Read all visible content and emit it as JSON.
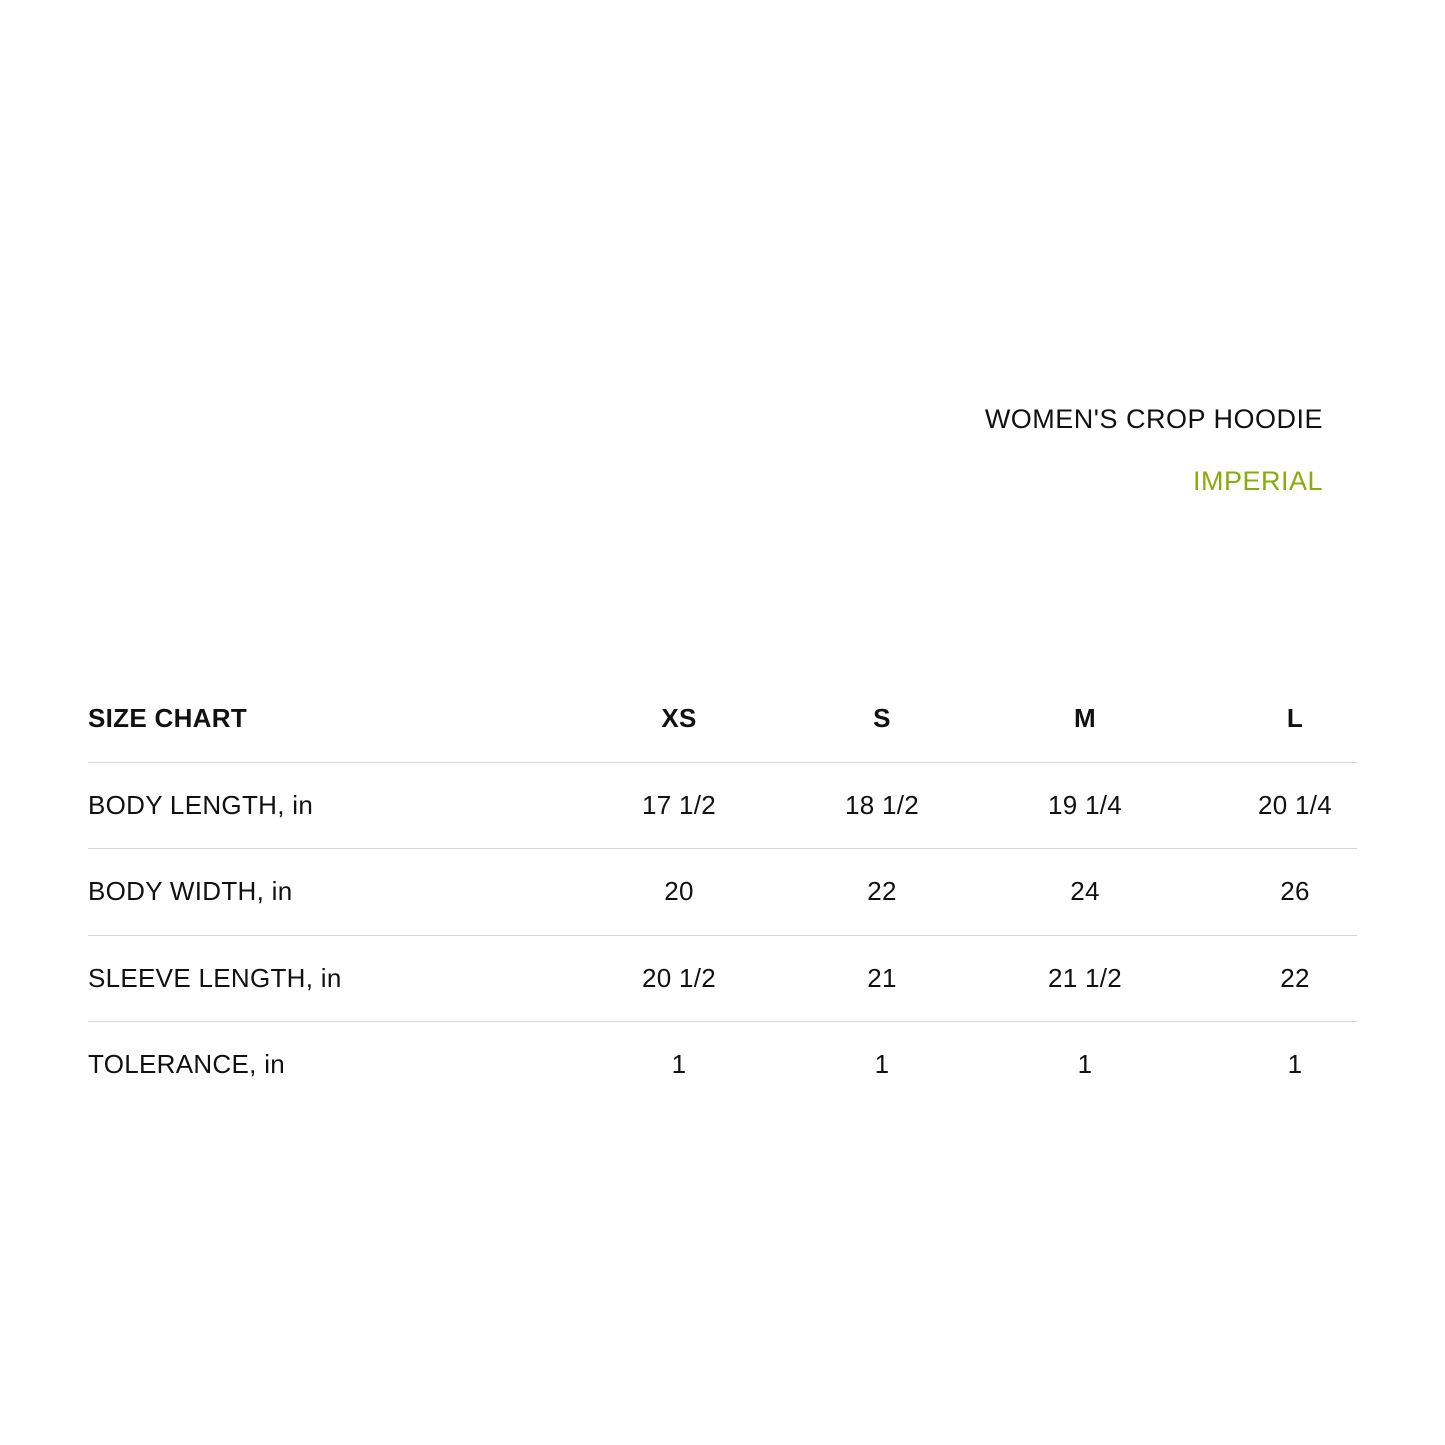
{
  "title": "WOMEN'S CROP HOODIE",
  "unit_system": "IMPERIAL",
  "colors": {
    "accent": "#8aab0a",
    "text": "#111111",
    "divider": "#d6d6d6"
  },
  "table": {
    "header": {
      "label": "SIZE CHART",
      "sizes": [
        "XS",
        "S",
        "M",
        "L"
      ]
    },
    "rows": [
      {
        "label": "BODY LENGTH, in",
        "values": [
          "17 1/2",
          "18 1/2",
          "19 1/4",
          "20 1/4"
        ]
      },
      {
        "label": "BODY WIDTH, in",
        "values": [
          "20",
          "22",
          "24",
          "26"
        ]
      },
      {
        "label": "SLEEVE LENGTH, in",
        "values": [
          "20 1/2",
          "21",
          "21 1/2",
          "22"
        ]
      },
      {
        "label": "TOLERANCE, in",
        "values": [
          "1",
          "1",
          "1",
          "1"
        ]
      }
    ]
  }
}
